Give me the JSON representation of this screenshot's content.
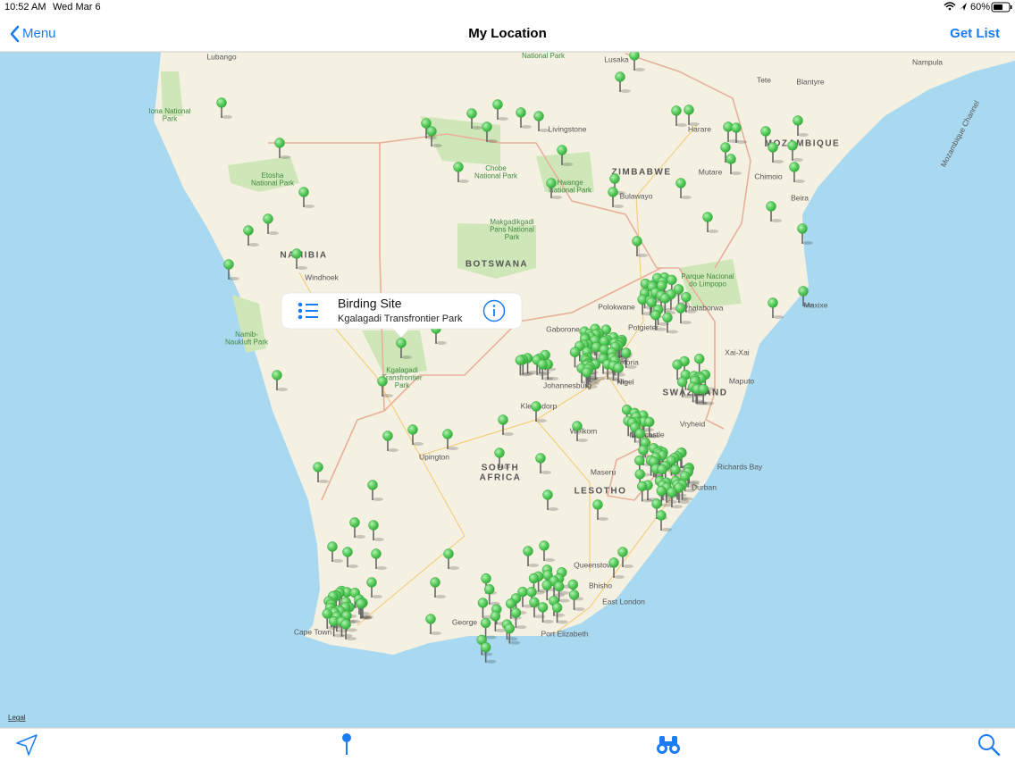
{
  "status_bar": {
    "time": "10:52 AM",
    "date": "Wed Mar 6",
    "battery": "60%"
  },
  "nav": {
    "back": "Menu",
    "title": "My Location",
    "action": "Get List"
  },
  "callout": {
    "title": "Birding Site",
    "subtitle": "Kgalagadi Transfrontier Park"
  },
  "map_labels": [
    [
      "Lubango"
    ],
    [
      "Iona National",
      "Park"
    ],
    [
      "Etosha",
      "National Park"
    ],
    [
      "NAMIBIA"
    ],
    [
      "Windhoek"
    ],
    [
      "Namib-",
      "Naukluft Park"
    ],
    [
      "Kgalagadi",
      "Transfrontier",
      "Park"
    ],
    [
      "BOTSWANA"
    ],
    [
      "Makgadikgadi",
      "Pans National",
      "Park"
    ],
    [
      "Chobe",
      "National Park"
    ],
    [
      "Livingstone"
    ],
    [
      "Hwange",
      "National Park"
    ],
    [
      "ZIMBABWE"
    ],
    [
      "Bulawayo"
    ],
    [
      "Harare"
    ],
    [
      "Mutare"
    ],
    [
      "Lusaka"
    ],
    [
      "National Park"
    ],
    [
      "Tete"
    ],
    [
      "Blantyre"
    ],
    [
      "Nampula"
    ],
    [
      "MOZAMBIQUE"
    ],
    [
      "Chimoio"
    ],
    [
      "Beira"
    ],
    [
      "Mozambique Channel"
    ],
    [
      "Maxixe"
    ],
    [
      "Parque Nacional",
      "do Limpopo"
    ],
    [
      "Phalaborwa"
    ],
    [
      "Polokwane"
    ],
    [
      "Potgieter"
    ],
    [
      "Gaborone"
    ],
    [
      "Pretoria"
    ],
    [
      "Johannesburg"
    ],
    [
      "Nigel"
    ],
    [
      "Xai-Xai"
    ],
    [
      "Maputo"
    ],
    [
      "SWAZILAND"
    ],
    [
      "Vryheid"
    ],
    [
      "Klerksdorp"
    ],
    [
      "Welkom"
    ],
    [
      "Newcastle"
    ],
    [
      "Richards Bay"
    ],
    [
      "Durban"
    ],
    [
      "Upington"
    ],
    [
      "SOUTH",
      "AFRICA"
    ],
    [
      "Maseru"
    ],
    [
      "LESOTHO"
    ],
    [
      "Queenstown"
    ],
    [
      "Bhisho"
    ],
    [
      "East London"
    ],
    [
      "George"
    ],
    [
      "Port Elizabeth"
    ],
    [
      "Cape Town"
    ]
  ],
  "legal": "Legal"
}
